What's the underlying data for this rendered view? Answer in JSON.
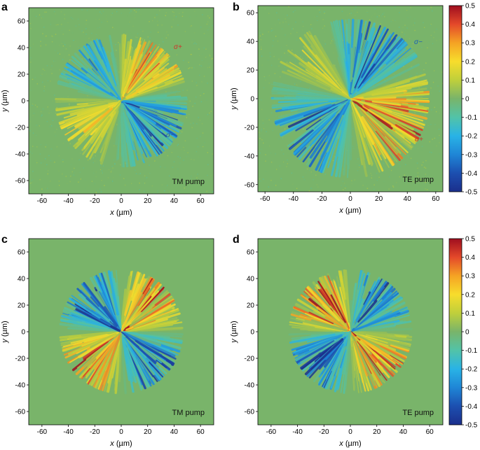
{
  "colors": {
    "background_field": "#79b46a",
    "negative_deep": "#1a3d8f",
    "positive_deep": "#a31622",
    "colormap": [
      "#1b2f8c",
      "#1c4fb0",
      "#1f86d6",
      "#29b3e6",
      "#52c3a8",
      "#79b46a",
      "#bfcf3b",
      "#f7dd2c",
      "#f5a324",
      "#e4492a",
      "#9f0e1f"
    ]
  },
  "chart_data": [
    {
      "type": "heatmap",
      "panel": "a",
      "xlabel": "x (µm)",
      "ylabel": "y (µm)",
      "xlim": [
        -70,
        70
      ],
      "ylim": [
        70,
        -70
      ],
      "xticks": [
        "-60",
        "-40",
        "-20",
        "0",
        "20",
        "40",
        "60"
      ],
      "yticks": [
        "-60",
        "-40",
        "-20",
        "0",
        "20",
        "40",
        "60"
      ],
      "annotations": [
        "TM pump",
        "σ+",
        "σ−"
      ],
      "pattern": {
        "kind": "experiment",
        "lobes": [
          {
            "sign": 1,
            "angle_deg": -55,
            "strength": 1.0
          },
          {
            "sign": 1,
            "angle_deg": 160,
            "strength": 0.6
          },
          {
            "sign": -1,
            "angle_deg": 30,
            "strength": 1.0
          },
          {
            "sign": -1,
            "angle_deg": -130,
            "strength": 0.9
          }
        ],
        "radius_um": 45
      }
    },
    {
      "type": "heatmap",
      "panel": "b",
      "xlabel": "x (µm)",
      "ylabel": "y (µm)",
      "xlim": [
        -65,
        65
      ],
      "ylim": [
        65,
        -65
      ],
      "xticks": [
        "-60",
        "-40",
        "-20",
        "0",
        "20",
        "40",
        "60"
      ],
      "yticks": [
        "-60",
        "-40",
        "-20",
        "0",
        "20",
        "40",
        "60"
      ],
      "annotations": [
        "TE pump",
        "σ−",
        "σ+"
      ],
      "colorbar": {
        "min": -0.5,
        "max": 0.5,
        "ticks": [
          "0.5",
          "0.4",
          "0.3",
          "0.2",
          "0.1",
          "0",
          "-0.1",
          "-0.2",
          "-0.3",
          "-0.4",
          "-0.5"
        ]
      },
      "pattern": {
        "kind": "experiment",
        "lobes": [
          {
            "sign": -1,
            "angle_deg": -65,
            "strength": 1.0
          },
          {
            "sign": -1,
            "angle_deg": 150,
            "strength": 0.9
          },
          {
            "sign": 1,
            "angle_deg": 20,
            "strength": 1.0
          },
          {
            "sign": 1,
            "angle_deg": -135,
            "strength": 0.6
          }
        ],
        "radius_um": 50
      }
    },
    {
      "type": "heatmap",
      "panel": "c",
      "xlabel": "x (µm)",
      "ylabel": "y (µm)",
      "xlim": [
        -70,
        70
      ],
      "ylim": [
        70,
        -70
      ],
      "xticks": [
        "-60",
        "-40",
        "-20",
        "0",
        "20",
        "40",
        "60"
      ],
      "yticks": [
        "-60",
        "-40",
        "-20",
        "0",
        "20",
        "40",
        "60"
      ],
      "annotations": [
        "TM pump"
      ],
      "pattern": {
        "kind": "simulation",
        "lobes": [
          {
            "sign": 1,
            "angle_deg": -45,
            "strength": 1.0
          },
          {
            "sign": 1,
            "angle_deg": 135,
            "strength": 1.0
          },
          {
            "sign": -1,
            "angle_deg": 45,
            "strength": 1.0
          },
          {
            "sign": -1,
            "angle_deg": -135,
            "strength": 1.0
          }
        ],
        "radius_um": 42
      }
    },
    {
      "type": "heatmap",
      "panel": "d",
      "xlabel": "x (µm)",
      "ylabel": "y (µm)",
      "xlim": [
        -70,
        70
      ],
      "ylim": [
        70,
        -70
      ],
      "xticks": [
        "-60",
        "-40",
        "-20",
        "0",
        "20",
        "40",
        "60"
      ],
      "yticks": [
        "-60",
        "-40",
        "-20",
        "0",
        "20",
        "40",
        "60"
      ],
      "annotations": [
        "TE pump"
      ],
      "colorbar": {
        "min": -0.5,
        "max": 0.5,
        "ticks": [
          "0.5",
          "0.4",
          "0.3",
          "0.2",
          "0.1",
          "0",
          "-0.1",
          "-0.2",
          "-0.3",
          "-0.4",
          "-0.5"
        ]
      },
      "pattern": {
        "kind": "simulation",
        "lobes": [
          {
            "sign": -1,
            "angle_deg": -45,
            "strength": 1.0
          },
          {
            "sign": -1,
            "angle_deg": 135,
            "strength": 1.0
          },
          {
            "sign": 1,
            "angle_deg": 45,
            "strength": 1.0
          },
          {
            "sign": 1,
            "angle_deg": -135,
            "strength": 1.0
          }
        ],
        "radius_um": 42
      }
    }
  ]
}
